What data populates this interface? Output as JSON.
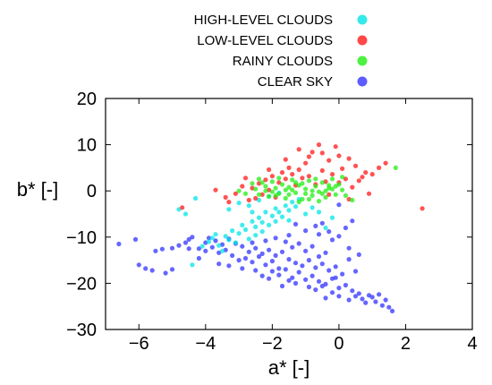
{
  "chart_data": {
    "type": "scatter",
    "xlabel": "a* [-]",
    "ylabel": "b* [-]",
    "xlim": [
      -7,
      4
    ],
    "ylim": [
      -30,
      20
    ],
    "x_ticks": [
      -6,
      -4,
      -2,
      0,
      2,
      4
    ],
    "y_ticks": [
      -30,
      -20,
      -10,
      0,
      10,
      20
    ],
    "grid": false,
    "legend_position": "top",
    "series": [
      {
        "name": "CLEAR SKY",
        "color": "#3333ff",
        "points": [
          [
            -6.6,
            -11.5
          ],
          [
            -6.1,
            -10.5
          ],
          [
            -6.0,
            -16.0
          ],
          [
            -5.6,
            -17.2
          ],
          [
            -5.2,
            -17.8
          ],
          [
            -5.0,
            -17.0
          ],
          [
            -5.8,
            -16.8
          ],
          [
            -5.5,
            -13.0
          ],
          [
            -5.3,
            -12.6
          ],
          [
            -5.0,
            -12.4
          ],
          [
            -4.8,
            -11.8
          ],
          [
            -4.6,
            -11.2
          ],
          [
            -4.5,
            -10.5
          ],
          [
            -4.4,
            -10.0
          ],
          [
            -4.5,
            -12.5
          ],
          [
            -4.2,
            -12.5
          ],
          [
            -4.0,
            -13.0
          ],
          [
            -3.8,
            -12.2
          ],
          [
            -3.6,
            -13.4
          ],
          [
            -3.4,
            -12.8
          ],
          [
            -3.2,
            -14.0
          ],
          [
            -4.0,
            -11.2
          ],
          [
            -3.7,
            -10.8
          ],
          [
            -3.5,
            -11.6
          ],
          [
            -3.3,
            -10.4
          ],
          [
            -3.1,
            -11.4
          ],
          [
            -2.9,
            -12.0
          ],
          [
            -2.7,
            -13.2
          ],
          [
            -3.0,
            -15.0
          ],
          [
            -2.8,
            -14.6
          ],
          [
            -2.6,
            -15.4
          ],
          [
            -2.4,
            -14.2
          ],
          [
            -2.2,
            -16.0
          ],
          [
            -2.0,
            -15.2
          ],
          [
            -1.8,
            -16.8
          ],
          [
            -2.5,
            -12.4
          ],
          [
            -2.3,
            -13.6
          ],
          [
            -2.1,
            -12.8
          ],
          [
            -1.9,
            -14.0
          ],
          [
            -1.7,
            -13.2
          ],
          [
            -1.5,
            -14.8
          ],
          [
            -1.3,
            -15.6
          ],
          [
            -2.0,
            -17.4
          ],
          [
            -1.8,
            -18.2
          ],
          [
            -1.6,
            -17.0
          ],
          [
            -1.4,
            -18.8
          ],
          [
            -1.2,
            -17.6
          ],
          [
            -1.0,
            -19.2
          ],
          [
            -0.8,
            -18.4
          ],
          [
            -1.6,
            -11.0
          ],
          [
            -1.4,
            -12.2
          ],
          [
            -1.2,
            -11.4
          ],
          [
            -1.0,
            -13.0
          ],
          [
            -0.8,
            -12.0
          ],
          [
            -0.6,
            -14.2
          ],
          [
            -0.4,
            -13.4
          ],
          [
            -1.1,
            -16.2
          ],
          [
            -0.9,
            -15.0
          ],
          [
            -0.7,
            -16.6
          ],
          [
            -0.5,
            -15.8
          ],
          [
            -0.3,
            -17.2
          ],
          [
            -0.1,
            -16.4
          ],
          [
            0.1,
            -18.0
          ],
          [
            -0.6,
            -19.6
          ],
          [
            -0.4,
            -20.2
          ],
          [
            -0.2,
            -19.0
          ],
          [
            0.0,
            -21.0
          ],
          [
            0.2,
            -20.4
          ],
          [
            0.4,
            -21.6
          ],
          [
            0.6,
            -22.2
          ],
          [
            -0.2,
            -10.6
          ],
          [
            0.0,
            -9.8
          ],
          [
            0.2,
            -8.0
          ],
          [
            0.4,
            -6.5
          ],
          [
            -0.3,
            -8.8
          ],
          [
            -0.6,
            -9.4
          ],
          [
            0.3,
            -12.4
          ],
          [
            0.5,
            -22.8
          ],
          [
            0.7,
            -23.4
          ],
          [
            0.9,
            -22.6
          ],
          [
            1.1,
            -24.0
          ],
          [
            1.3,
            -24.8
          ],
          [
            1.5,
            -25.2
          ],
          [
            1.6,
            -26.0
          ],
          [
            -0.9,
            -20.8
          ],
          [
            -0.7,
            -21.4
          ],
          [
            -0.5,
            -20.6
          ],
          [
            -1.3,
            -20.0
          ],
          [
            -1.5,
            -19.4
          ],
          [
            -1.7,
            -20.6
          ],
          [
            -0.2,
            -22.0
          ],
          [
            -3.6,
            -15.8
          ],
          [
            -3.3,
            -16.2
          ],
          [
            -4.2,
            -14.6
          ],
          [
            -2.9,
            -16.8
          ],
          [
            -2.5,
            -17.2
          ],
          [
            -2.3,
            -18.4
          ],
          [
            -2.1,
            -19.0
          ],
          [
            -1.9,
            -10.2
          ],
          [
            -2.2,
            -10.8
          ],
          [
            -2.6,
            -11.2
          ],
          [
            -1.5,
            -9.6
          ],
          [
            -1.0,
            -8.6
          ],
          [
            -0.7,
            -7.6
          ],
          [
            0.6,
            -13.8
          ],
          [
            1.0,
            -23.0
          ],
          [
            0.8,
            -24.2
          ],
          [
            1.2,
            -22.4
          ],
          [
            0.3,
            -23.6
          ],
          [
            0.0,
            -22.8
          ],
          [
            -0.4,
            -23.2
          ],
          [
            1.4,
            -23.6
          ],
          [
            0.0,
            -3.0
          ],
          [
            -0.5,
            -7.0
          ],
          [
            -1.3,
            -7.2
          ],
          [
            0.3,
            -14.8
          ],
          [
            -0.1,
            -18.8
          ],
          [
            0.5,
            -17.4
          ],
          [
            -3.9,
            -10.2
          ]
        ]
      },
      {
        "name": "HIGH-LEVEL CLOUDS",
        "color": "#00e5e5",
        "points": [
          [
            -4.8,
            -4.0
          ],
          [
            -4.6,
            -5.0
          ],
          [
            -4.3,
            -1.6
          ],
          [
            -3.9,
            -11.0
          ],
          [
            -3.8,
            -10.2
          ],
          [
            -3.6,
            -11.8
          ],
          [
            -3.7,
            -9.4
          ],
          [
            -3.4,
            -9.8
          ],
          [
            -3.3,
            -10.6
          ],
          [
            -3.2,
            -8.6
          ],
          [
            -3.0,
            -9.2
          ],
          [
            -2.9,
            -7.4
          ],
          [
            -2.8,
            -8.4
          ],
          [
            -2.6,
            -6.6
          ],
          [
            -2.5,
            -7.8
          ],
          [
            -2.4,
            -5.8
          ],
          [
            -2.3,
            -6.8
          ],
          [
            -2.2,
            -4.6
          ],
          [
            -2.0,
            -5.4
          ],
          [
            -1.9,
            -3.8
          ],
          [
            -1.8,
            -4.6
          ],
          [
            -1.6,
            -3.2
          ],
          [
            -1.5,
            -4.2
          ],
          [
            -1.4,
            -2.4
          ],
          [
            -1.3,
            -3.4
          ],
          [
            -1.2,
            -1.8
          ],
          [
            -3.1,
            -11.2
          ],
          [
            -2.7,
            -10.4
          ],
          [
            -2.5,
            -9.6
          ],
          [
            -2.3,
            -8.8
          ],
          [
            -2.1,
            -7.4
          ],
          [
            -1.9,
            -6.6
          ],
          [
            -1.7,
            -5.6
          ],
          [
            -1.5,
            -6.4
          ],
          [
            -4.1,
            -12.0
          ],
          [
            -4.4,
            -16.0
          ],
          [
            -3.5,
            -13.0
          ],
          [
            -3.3,
            -4.0
          ],
          [
            -3.0,
            -2.6
          ],
          [
            -2.7,
            -3.2
          ],
          [
            -2.4,
            -2.0
          ],
          [
            -2.1,
            -1.2
          ],
          [
            -1.8,
            -0.4
          ],
          [
            -0.8,
            -3.6
          ],
          [
            -0.6,
            -4.6
          ],
          [
            -0.4,
            -8.0
          ],
          [
            -0.2,
            -5.8
          ],
          [
            -1.0,
            -5.0
          ],
          [
            -2.6,
            -4.6
          ]
        ]
      },
      {
        "name": "LOW-LEVEL CLOUDS",
        "color": "#ff1a1a",
        "points": [
          [
            -4.7,
            -3.6
          ],
          [
            -3.7,
            0.2
          ],
          [
            -3.4,
            -1.4
          ],
          [
            -3.1,
            -0.6
          ],
          [
            -2.9,
            1.0
          ],
          [
            -2.7,
            -2.0
          ],
          [
            -2.6,
            0.6
          ],
          [
            -2.4,
            1.6
          ],
          [
            -2.3,
            -0.8
          ],
          [
            -2.2,
            2.4
          ],
          [
            -2.1,
            0.2
          ],
          [
            -2.0,
            3.2
          ],
          [
            -1.9,
            -1.4
          ],
          [
            -1.8,
            1.8
          ],
          [
            -1.7,
            4.0
          ],
          [
            -1.6,
            2.6
          ],
          [
            -1.5,
            5.0
          ],
          [
            -1.4,
            3.6
          ],
          [
            -1.3,
            1.2
          ],
          [
            -1.2,
            4.6
          ],
          [
            -1.1,
            2.8
          ],
          [
            -1.0,
            6.0
          ],
          [
            -0.9,
            3.2
          ],
          [
            -0.8,
            8.4
          ],
          [
            -0.7,
            1.4
          ],
          [
            -0.6,
            10.0
          ],
          [
            -0.5,
            4.4
          ],
          [
            -0.4,
            2.0
          ],
          [
            -0.3,
            6.6
          ],
          [
            -0.2,
            3.6
          ],
          [
            -0.1,
            9.6
          ],
          [
            0.0,
            1.8
          ],
          [
            0.1,
            4.8
          ],
          [
            0.2,
            2.6
          ],
          [
            0.3,
            7.0
          ],
          [
            0.4,
            0.8
          ],
          [
            0.5,
            5.4
          ],
          [
            0.6,
            2.2
          ],
          [
            0.7,
            3.0
          ],
          [
            0.8,
            4.0
          ],
          [
            0.9,
            -0.6
          ],
          [
            1.0,
            3.6
          ],
          [
            1.2,
            5.0
          ],
          [
            1.4,
            6.0
          ],
          [
            2.5,
            -3.8
          ],
          [
            -1.2,
            9.0
          ],
          [
            -0.9,
            7.4
          ],
          [
            -2.8,
            2.8
          ],
          [
            -3.3,
            -2.4
          ],
          [
            -0.5,
            8.2
          ],
          [
            0.0,
            7.6
          ],
          [
            -1.6,
            6.8
          ],
          [
            -2.1,
            4.6
          ],
          [
            0.3,
            -1.8
          ],
          [
            -2.5,
            -1.6
          ],
          [
            -0.3,
            -0.8
          ]
        ]
      },
      {
        "name": "RAINY CLOUDS",
        "color": "#22ee11",
        "points": [
          [
            -2.6,
            1.6
          ],
          [
            -2.5,
            0.4
          ],
          [
            -2.4,
            -0.8
          ],
          [
            -2.3,
            1.8
          ],
          [
            -2.2,
            0.0
          ],
          [
            -2.1,
            -1.2
          ],
          [
            -2.0,
            2.0
          ],
          [
            -1.9,
            0.6
          ],
          [
            -1.8,
            -0.6
          ],
          [
            -1.7,
            1.4
          ],
          [
            -1.6,
            -1.6
          ],
          [
            -1.5,
            0.8
          ],
          [
            -1.4,
            2.4
          ],
          [
            -1.3,
            -0.4
          ],
          [
            -1.2,
            1.2
          ],
          [
            -1.1,
            -1.8
          ],
          [
            -1.0,
            0.4
          ],
          [
            -0.9,
            2.2
          ],
          [
            -0.8,
            -1.0
          ],
          [
            -0.7,
            1.0
          ],
          [
            -0.6,
            -0.2
          ],
          [
            -0.5,
            1.8
          ],
          [
            -0.4,
            -1.4
          ],
          [
            -0.3,
            0.6
          ],
          [
            -0.2,
            2.6
          ],
          [
            -0.1,
            -0.8
          ],
          [
            0.0,
            1.4
          ],
          [
            0.1,
            0.2
          ],
          [
            0.2,
            -1.0
          ],
          [
            -2.2,
            1.0
          ],
          [
            -1.9,
            -1.0
          ],
          [
            -1.6,
            0.2
          ],
          [
            -1.3,
            1.8
          ],
          [
            -1.0,
            -0.6
          ],
          [
            -0.7,
            2.6
          ],
          [
            -0.4,
            0.0
          ],
          [
            -0.1,
            1.0
          ],
          [
            -2.0,
            -0.2
          ],
          [
            -1.5,
            -0.8
          ],
          [
            -1.1,
            1.6
          ],
          [
            -0.8,
            0.0
          ],
          [
            -0.5,
            -0.6
          ],
          [
            -0.2,
            0.4
          ],
          [
            -2.4,
            2.6
          ],
          [
            -1.8,
            2.8
          ],
          [
            -1.2,
            -2.4
          ],
          [
            -0.6,
            -2.2
          ],
          [
            0.4,
            -2.0
          ],
          [
            1.7,
            5.0
          ],
          [
            -3.0,
            0.0
          ],
          [
            -2.8,
            -0.6
          ],
          [
            0.1,
            3.0
          ],
          [
            -1.4,
            0.2
          ],
          [
            -0.9,
            -1.8
          ],
          [
            -0.3,
            1.2
          ]
        ]
      }
    ]
  }
}
